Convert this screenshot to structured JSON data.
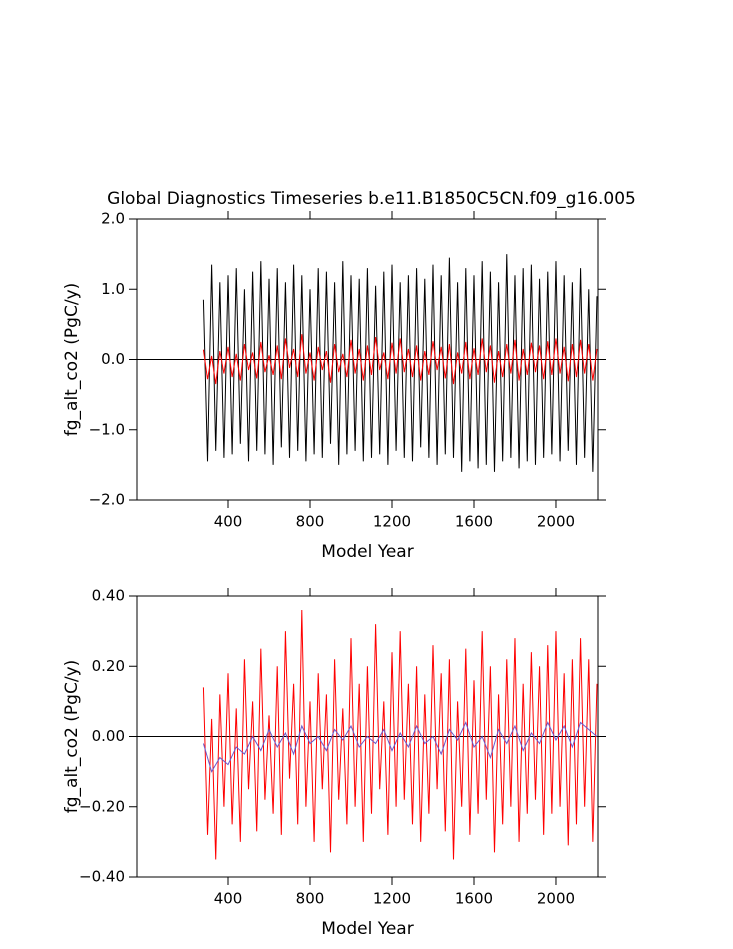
{
  "chart_data": [
    {
      "type": "line",
      "title": "Global Diagnostics Timeseries b.e11.B1850C5CN.f09_g16.005",
      "xlabel": "Model Year",
      "ylabel": "fg_alt_co2 (PgC/y)",
      "xlim": [
        -44,
        2205
      ],
      "ylim": [
        -2.0,
        2.0
      ],
      "xticks": [
        400,
        800,
        1200,
        1600,
        2000
      ],
      "yticks": [
        {
          "value": -2.0,
          "label": "−2.0"
        },
        {
          "value": -1.0,
          "label": "−1.0"
        },
        {
          "value": 0.0,
          "label": "0.0"
        },
        {
          "value": 1.0,
          "label": "1.0"
        },
        {
          "value": 2.0,
          "label": "2.0"
        }
      ],
      "reference_line": 0,
      "series": [
        {
          "color": "#000000",
          "x": [
            280,
            300,
            320,
            340,
            360,
            380,
            400,
            420,
            440,
            460,
            480,
            500,
            520,
            540,
            560,
            580,
            600,
            620,
            640,
            660,
            680,
            700,
            720,
            740,
            760,
            780,
            800,
            820,
            840,
            860,
            880,
            900,
            920,
            940,
            960,
            980,
            1000,
            1020,
            1040,
            1060,
            1080,
            1100,
            1120,
            1140,
            1160,
            1180,
            1200,
            1220,
            1240,
            1260,
            1280,
            1300,
            1320,
            1340,
            1360,
            1380,
            1400,
            1420,
            1440,
            1460,
            1480,
            1500,
            1520,
            1540,
            1560,
            1580,
            1600,
            1620,
            1640,
            1660,
            1680,
            1700,
            1720,
            1740,
            1760,
            1780,
            1800,
            1820,
            1840,
            1860,
            1880,
            1900,
            1920,
            1940,
            1960,
            1980,
            2000,
            2020,
            2040,
            2060,
            2080,
            2100,
            2120,
            2140,
            2160,
            2180,
            2200
          ],
          "values": [
            0.85,
            -1.45,
            1.35,
            -1.3,
            1.1,
            -1.4,
            1.2,
            -1.35,
            1.3,
            -1.2,
            1.0,
            -1.45,
            1.25,
            -1.3,
            1.4,
            -1.35,
            1.15,
            -1.5,
            1.3,
            -1.25,
            1.1,
            -1.4,
            1.35,
            -1.3,
            1.2,
            -1.45,
            1.0,
            -1.35,
            1.3,
            -1.4,
            1.25,
            -1.2,
            1.1,
            -1.5,
            1.4,
            -1.35,
            1.2,
            -1.3,
            1.15,
            -1.45,
            1.3,
            -1.4,
            1.05,
            -1.35,
            1.25,
            -1.5,
            1.35,
            -1.3,
            1.1,
            -1.4,
            1.2,
            -1.45,
            1.3,
            -1.25,
            1.15,
            -1.4,
            1.35,
            -1.5,
            1.2,
            -1.35,
            1.45,
            -1.4,
            1.1,
            -1.6,
            1.3,
            -1.45,
            1.2,
            -1.55,
            1.4,
            -1.5,
            1.25,
            -1.6,
            1.1,
            -1.45,
            1.5,
            -1.4,
            1.2,
            -1.55,
            1.3,
            -1.45,
            1.35,
            -1.5,
            1.15,
            -1.4,
            1.25,
            -1.35,
            1.4,
            -1.45,
            1.2,
            -1.3,
            1.1,
            -1.5,
            1.3,
            -1.4,
            1.0,
            -1.6,
            0.9
          ]
        },
        {
          "color": "#ff0000",
          "x": [
            280,
            300,
            320,
            340,
            360,
            380,
            400,
            420,
            440,
            460,
            480,
            500,
            520,
            540,
            560,
            580,
            600,
            620,
            640,
            660,
            680,
            700,
            720,
            740,
            760,
            780,
            800,
            820,
            840,
            860,
            880,
            900,
            920,
            940,
            960,
            980,
            1000,
            1020,
            1040,
            1060,
            1080,
            1100,
            1120,
            1140,
            1160,
            1180,
            1200,
            1220,
            1240,
            1260,
            1280,
            1300,
            1320,
            1340,
            1360,
            1380,
            1400,
            1420,
            1440,
            1460,
            1480,
            1500,
            1520,
            1540,
            1560,
            1580,
            1600,
            1620,
            1640,
            1660,
            1680,
            1700,
            1720,
            1740,
            1760,
            1780,
            1800,
            1820,
            1840,
            1860,
            1880,
            1900,
            1920,
            1940,
            1960,
            1980,
            2000,
            2020,
            2040,
            2060,
            2080,
            2100,
            2120,
            2140,
            2160,
            2180,
            2200
          ],
          "values": [
            0.14,
            -0.28,
            0.05,
            -0.35,
            0.12,
            -0.2,
            0.18,
            -0.25,
            0.08,
            -0.3,
            0.22,
            -0.15,
            0.1,
            -0.27,
            0.25,
            -0.18,
            0.06,
            -0.22,
            0.2,
            -0.28,
            0.3,
            -0.12,
            0.15,
            -0.25,
            0.36,
            -0.2,
            0.1,
            -0.3,
            0.18,
            -0.15,
            0.12,
            -0.33,
            0.22,
            -0.18,
            0.08,
            -0.25,
            0.28,
            -0.2,
            0.15,
            -0.3,
            0.2,
            -0.22,
            0.32,
            -0.15,
            0.1,
            -0.28,
            0.24,
            -0.2,
            0.3,
            -0.18,
            0.15,
            -0.25,
            0.2,
            -0.3,
            0.12,
            -0.22,
            0.26,
            -0.15,
            0.18,
            -0.27,
            0.22,
            -0.35,
            0.1,
            -0.2,
            0.25,
            -0.28,
            0.16,
            -0.22,
            0.3,
            -0.18,
            0.2,
            -0.33,
            0.12,
            -0.25,
            0.22,
            -0.2,
            0.28,
            -0.3,
            0.15,
            -0.22,
            0.24,
            -0.18,
            0.2,
            -0.28,
            0.26,
            -0.22,
            0.3,
            -0.2,
            0.18,
            -0.31,
            0.22,
            -0.25,
            0.28,
            -0.2,
            0.22,
            -0.3,
            0.15
          ]
        }
      ]
    },
    {
      "type": "line",
      "xlabel": "Model Year",
      "ylabel": "fg_alt_co2 (PgC/y)",
      "xlim": [
        -44,
        2205
      ],
      "ylim": [
        -0.4,
        0.4
      ],
      "xticks": [
        400,
        800,
        1200,
        1600,
        2000
      ],
      "yticks": [
        {
          "value": -0.4,
          "label": "−0.40"
        },
        {
          "value": -0.2,
          "label": "−0.20"
        },
        {
          "value": 0.0,
          "label": "0.00"
        },
        {
          "value": 0.2,
          "label": "0.20"
        },
        {
          "value": 0.4,
          "label": "0.40"
        }
      ],
      "reference_line": 0,
      "series": [
        {
          "color": "#ff0000",
          "x": [
            280,
            300,
            320,
            340,
            360,
            380,
            400,
            420,
            440,
            460,
            480,
            500,
            520,
            540,
            560,
            580,
            600,
            620,
            640,
            660,
            680,
            700,
            720,
            740,
            760,
            780,
            800,
            820,
            840,
            860,
            880,
            900,
            920,
            940,
            960,
            980,
            1000,
            1020,
            1040,
            1060,
            1080,
            1100,
            1120,
            1140,
            1160,
            1180,
            1200,
            1220,
            1240,
            1260,
            1280,
            1300,
            1320,
            1340,
            1360,
            1380,
            1400,
            1420,
            1440,
            1460,
            1480,
            1500,
            1520,
            1540,
            1560,
            1580,
            1600,
            1620,
            1640,
            1660,
            1680,
            1700,
            1720,
            1740,
            1760,
            1780,
            1800,
            1820,
            1840,
            1860,
            1880,
            1900,
            1920,
            1940,
            1960,
            1980,
            2000,
            2020,
            2040,
            2060,
            2080,
            2100,
            2120,
            2140,
            2160,
            2180,
            2200
          ],
          "values": [
            0.14,
            -0.28,
            0.05,
            -0.35,
            0.12,
            -0.2,
            0.18,
            -0.25,
            0.08,
            -0.3,
            0.22,
            -0.15,
            0.1,
            -0.27,
            0.25,
            -0.18,
            0.06,
            -0.22,
            0.2,
            -0.28,
            0.3,
            -0.12,
            0.15,
            -0.25,
            0.36,
            -0.2,
            0.1,
            -0.3,
            0.18,
            -0.15,
            0.12,
            -0.33,
            0.22,
            -0.18,
            0.08,
            -0.25,
            0.28,
            -0.2,
            0.15,
            -0.3,
            0.2,
            -0.22,
            0.32,
            -0.15,
            0.1,
            -0.28,
            0.24,
            -0.2,
            0.3,
            -0.18,
            0.15,
            -0.25,
            0.2,
            -0.3,
            0.12,
            -0.22,
            0.26,
            -0.15,
            0.18,
            -0.27,
            0.22,
            -0.35,
            0.1,
            -0.2,
            0.25,
            -0.28,
            0.16,
            -0.22,
            0.3,
            -0.18,
            0.2,
            -0.33,
            0.12,
            -0.25,
            0.22,
            -0.2,
            0.28,
            -0.3,
            0.15,
            -0.22,
            0.24,
            -0.18,
            0.2,
            -0.28,
            0.26,
            -0.22,
            0.3,
            -0.2,
            0.18,
            -0.31,
            0.22,
            -0.25,
            0.28,
            -0.2,
            0.22,
            -0.3,
            0.15
          ]
        },
        {
          "color": "#6a5acd",
          "x": [
            280,
            320,
            360,
            400,
            440,
            480,
            520,
            560,
            600,
            640,
            680,
            720,
            760,
            800,
            840,
            880,
            920,
            960,
            1000,
            1040,
            1080,
            1120,
            1160,
            1200,
            1240,
            1280,
            1320,
            1360,
            1400,
            1440,
            1480,
            1520,
            1560,
            1600,
            1640,
            1680,
            1720,
            1760,
            1800,
            1840,
            1880,
            1920,
            1960,
            2000,
            2040,
            2080,
            2120,
            2160,
            2200
          ],
          "values": [
            -0.02,
            -0.1,
            -0.06,
            -0.08,
            -0.03,
            -0.05,
            0.0,
            -0.04,
            0.02,
            -0.03,
            0.01,
            -0.05,
            0.03,
            -0.02,
            0.0,
            -0.04,
            0.02,
            -0.01,
            0.03,
            -0.03,
            0.0,
            -0.02,
            0.02,
            -0.04,
            0.01,
            -0.03,
            0.03,
            -0.02,
            0.0,
            -0.05,
            0.02,
            -0.01,
            0.04,
            -0.03,
            0.0,
            -0.06,
            0.02,
            -0.02,
            0.03,
            -0.04,
            0.01,
            -0.02,
            0.04,
            -0.01,
            0.03,
            -0.03,
            0.04,
            0.02,
            0.0
          ]
        }
      ]
    }
  ]
}
